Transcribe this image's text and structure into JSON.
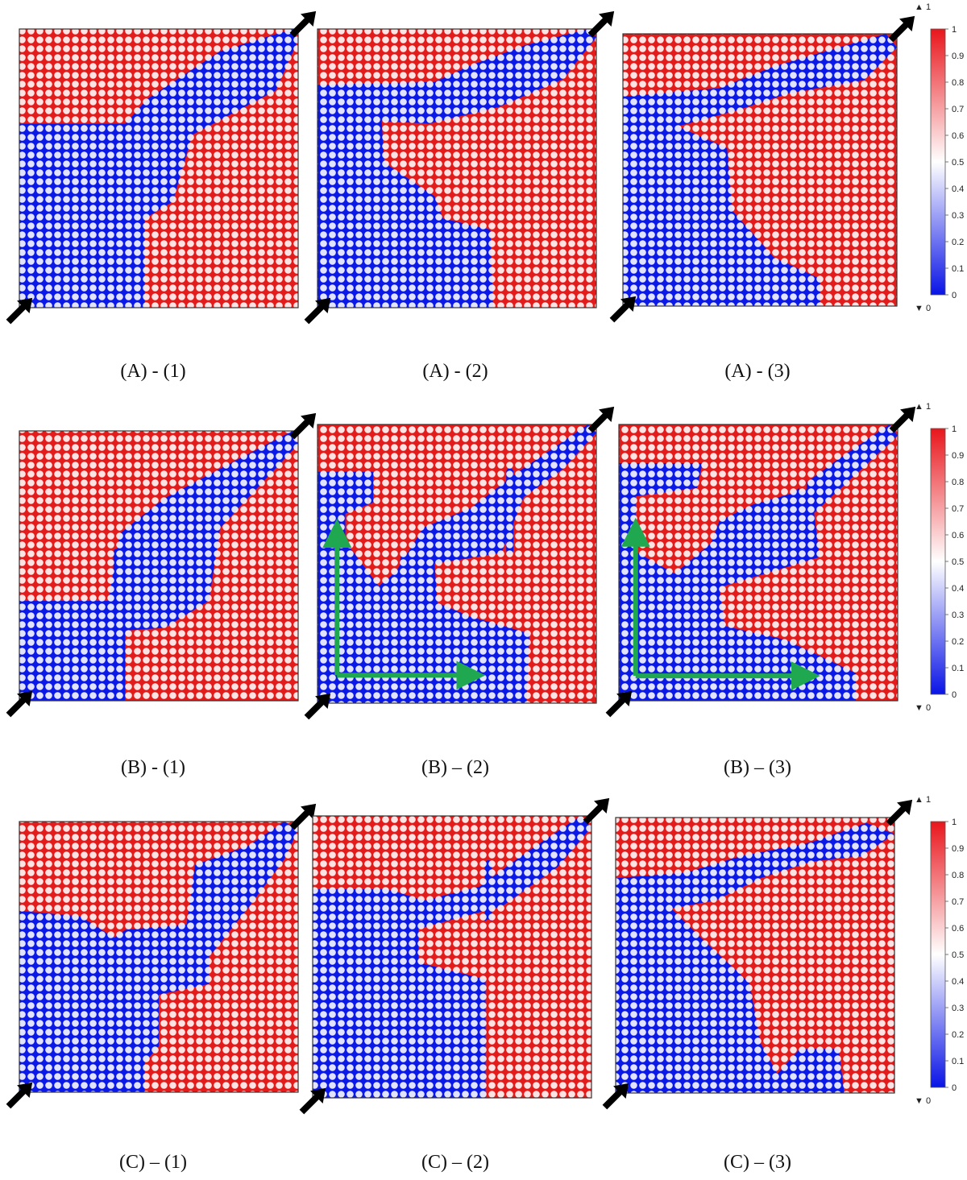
{
  "figure": {
    "rows": [
      {
        "row": "A",
        "panels": [
          {
            "label": "(A) - (1)"
          },
          {
            "label": "(A) - (2)"
          },
          {
            "label": "(A) - (3)"
          }
        ]
      },
      {
        "row": "B",
        "panels": [
          {
            "label": "(B) - (1)"
          },
          {
            "label": "(B) – (2)"
          },
          {
            "label": "(B) – (3)"
          }
        ]
      },
      {
        "row": "C",
        "panels": [
          {
            "label": "(C) – (1)"
          },
          {
            "label": "(C) – (2)"
          },
          {
            "label": "(C) – (3)"
          }
        ]
      }
    ],
    "colorbar": {
      "ticks": [
        "1",
        "0.9",
        "0.8",
        "0.7",
        "0.6",
        "0.5",
        "0.4",
        "0.3",
        "0.2",
        "0.1",
        "0"
      ],
      "max_label": "1",
      "min_label": "0",
      "colors": {
        "high": "#e8161c",
        "mid": "#ffffff",
        "low": "#0a14e6"
      }
    },
    "colors": {
      "red_phase": "#e41b1b",
      "blue_phase": "#0b19e8",
      "arrow": "#000000",
      "guide_arrow": "#1fa84f"
    }
  }
}
